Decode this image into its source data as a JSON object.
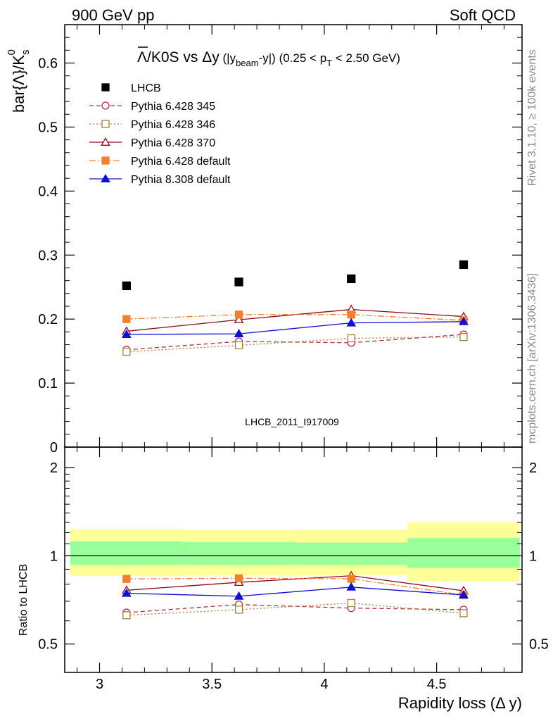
{
  "header": {
    "left": "900 GeV pp",
    "right": "Soft QCD"
  },
  "side": {
    "rivet": "Rivet 3.1.10, ≥ 100k events",
    "mcplots": "mcplots.cern.ch [arXiv:1306.3436]"
  },
  "watermark": "LHCB_2011_I917009",
  "colors": {
    "LHCB": "#000000",
    "p345": "#b03040",
    "p346": "#a08040",
    "p370": "#8b0a1a",
    "p6def": "#f08030",
    "p8def": "#1010d0",
    "band_inner": "#99ff99",
    "band_outer": "#ffff99"
  },
  "chart_data": [
    {
      "type": "scatter",
      "title_parts": {
        "bar": "Λ",
        "main": "/K0S vs Δy",
        "paren1": " (|y",
        "sub1": "beam",
        "paren2": "-y|) (0.25 < p",
        "sub2": "T",
        "paren3": " < 2.50 GeV)"
      },
      "ylabel_parts": {
        "base": "bar{Λ}/K",
        "sub": "s",
        "sup": "0"
      },
      "ylim": [
        0,
        0.66
      ],
      "yticks": [
        {
          "v": 0,
          "label": "0"
        },
        {
          "v": 0.1,
          "label": "0.1"
        },
        {
          "v": 0.2,
          "label": "0.2"
        },
        {
          "v": 0.3,
          "label": "0.3"
        },
        {
          "v": 0.4,
          "label": "0.4"
        },
        {
          "v": 0.5,
          "label": "0.5"
        },
        {
          "v": 0.6,
          "label": "0.6"
        }
      ],
      "xlim": [
        2.845,
        4.88
      ],
      "x": [
        3.12,
        3.62,
        4.12,
        4.62
      ],
      "legend_position": "top-left",
      "series": [
        {
          "name": "LHCB",
          "key": "LHCB",
          "values": [
            0.252,
            0.258,
            0.263,
            0.285
          ],
          "errors": [
            0.003,
            0.003,
            0.003,
            0.004
          ],
          "marker": "square-filled",
          "dash": "none",
          "line": false
        },
        {
          "name": "Pythia 6.428 345",
          "key": "p345",
          "values": [
            0.152,
            0.165,
            0.163,
            0.176
          ],
          "errors": [
            0.003,
            0.003,
            0.003,
            0.003
          ],
          "marker": "circle-open",
          "dash": "6,4",
          "line": true
        },
        {
          "name": "Pythia 6.428 346",
          "key": "p346",
          "values": [
            0.149,
            0.159,
            0.17,
            0.172
          ],
          "errors": [
            0.003,
            0.003,
            0.003,
            0.003
          ],
          "marker": "square-open",
          "dash": "2,3",
          "line": true
        },
        {
          "name": "Pythia 6.428 370",
          "key": "p370",
          "values": [
            0.181,
            0.199,
            0.215,
            0.204
          ],
          "errors": [
            0.003,
            0.003,
            0.003,
            0.003
          ],
          "marker": "triangle-open",
          "dash": "none",
          "line": true
        },
        {
          "name": "Pythia 6.428 default",
          "key": "p6def",
          "values": [
            0.2,
            0.207,
            0.207,
            0.198
          ],
          "errors": [
            0.004,
            0.004,
            0.004,
            0.004
          ],
          "marker": "square-filled",
          "dash": "9,3,2,3",
          "line": true
        },
        {
          "name": "Pythia 8.308 default",
          "key": "p8def",
          "values": [
            0.176,
            0.177,
            0.194,
            0.196
          ],
          "errors": [
            0.003,
            0.003,
            0.003,
            0.003
          ],
          "marker": "triangle-filled",
          "dash": "none",
          "line": true
        }
      ]
    },
    {
      "type": "scatter",
      "ylabel": "Ratio to LHCB",
      "scale": "log",
      "ylim": [
        0.4,
        2.35
      ],
      "yticks": [
        {
          "v": 0.5,
          "label": "0.5"
        },
        {
          "v": 1,
          "label": "1"
        },
        {
          "v": 2,
          "label": "2"
        }
      ],
      "xlabel": "Rapidity loss (Δ y)",
      "xlim": [
        2.845,
        4.88
      ],
      "xticks": [
        {
          "v": 3,
          "label": "3"
        },
        {
          "v": 3.5,
          "label": "3.5"
        },
        {
          "v": 4,
          "label": "4"
        },
        {
          "v": 4.5,
          "label": "4.5"
        }
      ],
      "x": [
        3.12,
        3.62,
        4.12,
        4.62
      ],
      "bands": [
        {
          "x0": 2.87,
          "x1": 3.37,
          "inner": [
            0.932,
            1.12
          ],
          "outer": [
            0.855,
            1.235
          ]
        },
        {
          "x0": 3.37,
          "x1": 3.87,
          "inner": [
            0.932,
            1.115
          ],
          "outer": [
            0.86,
            1.228
          ]
        },
        {
          "x0": 3.87,
          "x1": 4.37,
          "inner": [
            0.932,
            1.11
          ],
          "outer": [
            0.86,
            1.225
          ]
        },
        {
          "x0": 4.37,
          "x1": 4.87,
          "inner": [
            0.91,
            1.15
          ],
          "outer": [
            0.82,
            1.3
          ]
        }
      ],
      "series": [
        {
          "key": "p345",
          "values": [
            0.64,
            0.682,
            0.663,
            0.655
          ],
          "marker": "circle-open",
          "dash": "6,4"
        },
        {
          "key": "p346",
          "values": [
            0.627,
            0.655,
            0.69,
            0.637
          ],
          "marker": "square-open",
          "dash": "2,3"
        },
        {
          "key": "p370",
          "values": [
            0.763,
            0.812,
            0.855,
            0.76
          ],
          "marker": "triangle-open",
          "dash": "none"
        },
        {
          "key": "p6def",
          "values": [
            0.834,
            0.838,
            0.835,
            0.735
          ],
          "marker": "square-filled",
          "dash": "9,3,2,3"
        },
        {
          "key": "p8def",
          "values": [
            0.745,
            0.728,
            0.782,
            0.735
          ],
          "marker": "triangle-filled",
          "dash": "none"
        }
      ]
    }
  ]
}
